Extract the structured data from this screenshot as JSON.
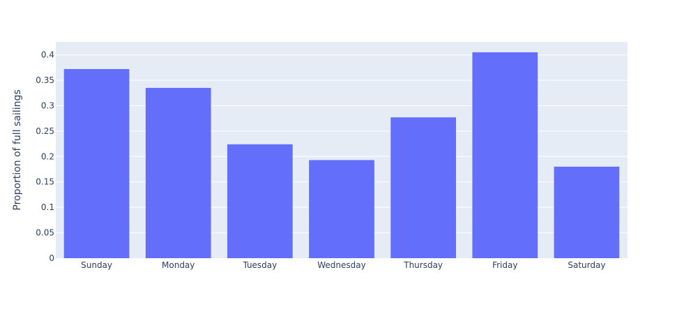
{
  "chart_data": {
    "type": "bar",
    "title": "",
    "xlabel": "",
    "ylabel": "Proportion of full sailings",
    "categories": [
      "Sunday",
      "Monday",
      "Tuesday",
      "Wednesday",
      "Thursday",
      "Friday",
      "Saturday"
    ],
    "values": [
      0.372,
      0.335,
      0.224,
      0.193,
      0.277,
      0.405,
      0.18
    ],
    "ylim": [
      0,
      0.4255
    ],
    "yticks": [
      0,
      0.05,
      0.1,
      0.15,
      0.2,
      0.25,
      0.3,
      0.35,
      0.4
    ],
    "ytick_labels": [
      "0",
      "0.05",
      "0.1",
      "0.15",
      "0.2",
      "0.25",
      "0.3",
      "0.35",
      "0.4"
    ],
    "grid": true,
    "legend": "none",
    "colors": {
      "bar": "#636efa",
      "plot_background": "#e5ecf6",
      "grid": "#ffffff",
      "text": "#2a3f5f"
    }
  }
}
